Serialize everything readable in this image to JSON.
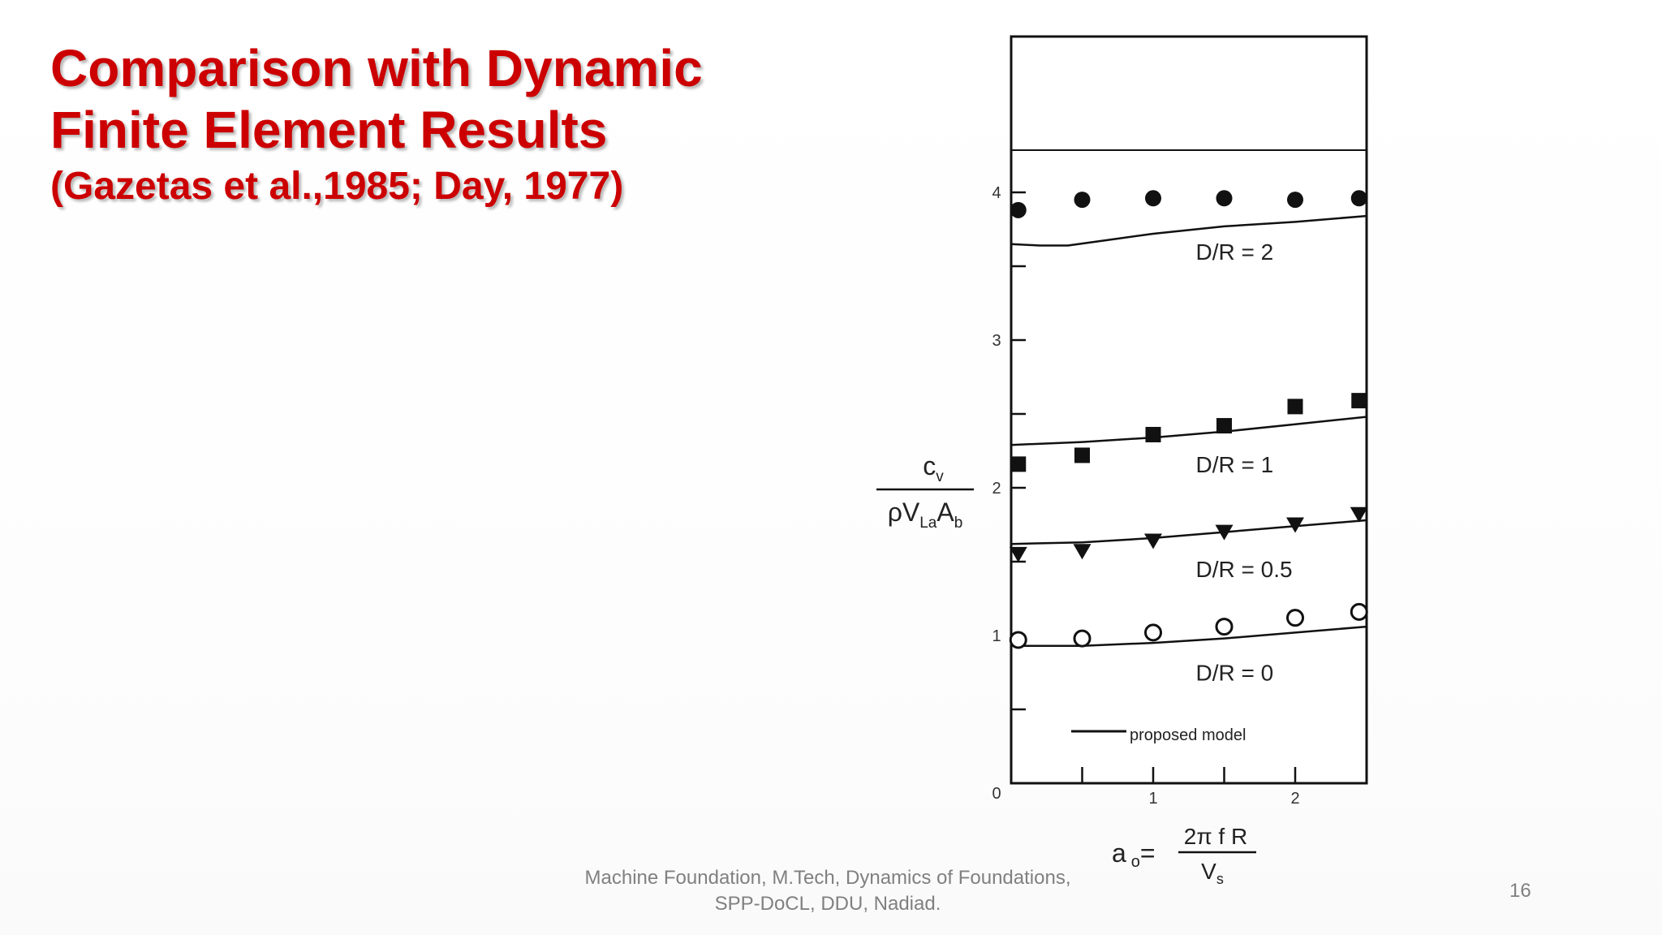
{
  "slide": {
    "title_lines": [
      "Comparison with Dynamic",
      "Finite Element Results"
    ],
    "subtitle": "(Gazetas et al.,1985; Day, 1977)",
    "footer_lines": [
      "Machine Foundation, M.Tech, Dynamics of Foundations,",
      "SPP-DoCL, DDU, Nadiad."
    ],
    "slide_number": "16",
    "colors": {
      "title": "#cc0000",
      "footer": "#808080",
      "plot_ink": "#111111"
    }
  },
  "chart_data": {
    "type": "scatter",
    "title": "",
    "xlabel": "a_o = 2π f R / V_s",
    "ylabel": "c_v / (ρ V_La A_b)",
    "xlabel_parts": {
      "lhs": "a",
      "lhs_sub": "o",
      "eq": "=",
      "numerator": "2π f R",
      "denominator": "V",
      "denominator_sub": "s"
    },
    "ylabel_parts": {
      "numerator": "c",
      "numerator_sub": "v",
      "den_a": "ρV",
      "den_a_sub": "La",
      "den_b": "A",
      "den_b_sub": "b"
    },
    "xlim": [
      0,
      2.5
    ],
    "ylim": [
      0,
      4.3
    ],
    "x_ticks": [
      0.5,
      1,
      1.5,
      2
    ],
    "x_tick_labels": [
      {
        "value": 1,
        "label": "1"
      },
      {
        "value": 2,
        "label": "2"
      }
    ],
    "origin_label": "0",
    "y_ticks": [
      0.5,
      1,
      1.5,
      2,
      2.5,
      3,
      3.5,
      4
    ],
    "y_tick_labels": [
      {
        "value": 1,
        "label": "1"
      },
      {
        "value": 2,
        "label": "2"
      },
      {
        "value": 3,
        "label": "3"
      },
      {
        "value": 4,
        "label": "4"
      }
    ],
    "grid": false,
    "legend": {
      "entries": [
        {
          "label": "proposed model",
          "style": "solid-line"
        }
      ],
      "position": "lower-left-inside"
    },
    "series": [
      {
        "name": "D/R = 2",
        "marker": "filled-circle",
        "points_x": [
          0.05,
          0.5,
          1.0,
          1.5,
          2.0,
          2.45
        ],
        "points_y": [
          3.88,
          3.95,
          3.96,
          3.96,
          3.95,
          3.96
        ],
        "model_x": [
          0,
          0.2,
          0.4,
          0.7,
          1.0,
          1.5,
          2.0,
          2.5
        ],
        "model_y": [
          3.65,
          3.64,
          3.64,
          3.68,
          3.72,
          3.77,
          3.8,
          3.84
        ],
        "label_pos": [
          1.3,
          3.6
        ]
      },
      {
        "name": "D/R = 1",
        "marker": "filled-square",
        "points_x": [
          0.05,
          0.5,
          1.0,
          1.5,
          2.0,
          2.45
        ],
        "points_y": [
          2.16,
          2.22,
          2.36,
          2.42,
          2.55,
          2.59
        ],
        "model_x": [
          0,
          0.5,
          1.0,
          1.5,
          2.0,
          2.5
        ],
        "model_y": [
          2.29,
          2.31,
          2.34,
          2.38,
          2.43,
          2.48
        ],
        "label_pos": [
          1.3,
          2.16
        ]
      },
      {
        "name": "D/R = 0.5",
        "marker": "filled-triangle-down",
        "points_x": [
          0.05,
          0.5,
          1.0,
          1.5,
          2.0,
          2.45
        ],
        "points_y": [
          1.55,
          1.57,
          1.64,
          1.7,
          1.75,
          1.82
        ],
        "model_x": [
          0,
          0.5,
          1.0,
          1.5,
          2.0,
          2.5
        ],
        "model_y": [
          1.62,
          1.63,
          1.66,
          1.7,
          1.74,
          1.78
        ],
        "label_pos": [
          1.3,
          1.45
        ]
      },
      {
        "name": "D/R = 0",
        "marker": "open-circle",
        "points_x": [
          0.05,
          0.5,
          1.0,
          1.5,
          2.0,
          2.45
        ],
        "points_y": [
          0.97,
          0.98,
          1.02,
          1.06,
          1.12,
          1.16
        ],
        "model_x": [
          0,
          0.5,
          1.0,
          1.5,
          2.0,
          2.5
        ],
        "model_y": [
          0.93,
          0.93,
          0.95,
          0.98,
          1.02,
          1.06
        ],
        "label_pos": [
          1.3,
          0.75
        ]
      }
    ]
  }
}
